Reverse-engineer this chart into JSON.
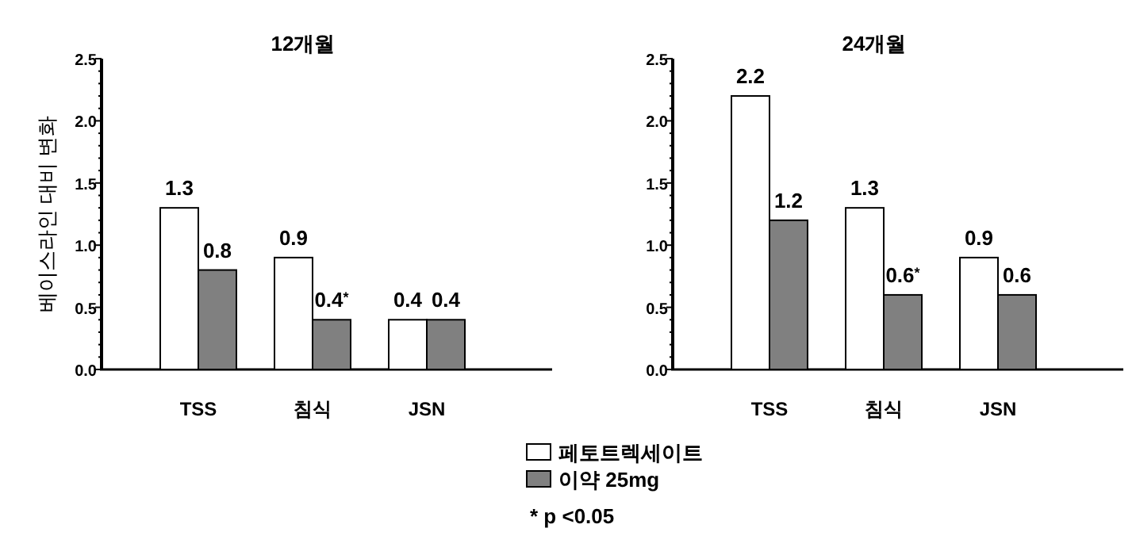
{
  "chart_data": [
    {
      "type": "bar",
      "title": "12개월",
      "ylabel": "베이스라인 대비 변화",
      "categories": [
        "TSS",
        "침식",
        "JSN"
      ],
      "series": [
        {
          "name": "페토트렉세이트",
          "color": "#ffffff",
          "values": [
            1.3,
            0.9,
            0.4
          ],
          "value_labels": [
            "1.3",
            "0.9",
            "0.4"
          ]
        },
        {
          "name": "이약 25mg",
          "color": "#808080",
          "values": [
            0.8,
            0.4,
            0.4
          ],
          "value_labels": [
            "0.8",
            "0.4$^{*}$",
            "0.4"
          ]
        }
      ],
      "ylim": [
        0,
        2.5
      ],
      "yticks": [
        {
          "value": 0,
          "label": "0.0"
        },
        {
          "value": 0.5,
          "label": "0.5"
        },
        {
          "value": 1,
          "label": "1.0"
        },
        {
          "value": 1.5,
          "label": "1.5"
        },
        {
          "value": 2,
          "label": "2.0"
        },
        {
          "value": 2.5,
          "label": "2.5"
        }
      ],
      "legend": "bottom",
      "annotations": [
        "* p <0.05"
      ]
    },
    {
      "type": "bar",
      "title": "24개월",
      "categories": [
        "TSS",
        "침식",
        "JSN"
      ],
      "series": [
        {
          "color": "#ffffff",
          "values": [
            2.2,
            1.3,
            0.9
          ],
          "value_labels": [
            "2.2",
            "1.3",
            "0.9"
          ]
        },
        {
          "color": "#808080",
          "values": [
            1.2,
            0.6,
            0.6
          ],
          "value_labels": [
            "1.2",
            "0.6$^{*}$",
            "0.6"
          ]
        }
      ],
      "ylim": [
        0,
        2.5
      ],
      "yticks": [
        {
          "value": 0,
          "label": "0.0"
        },
        {
          "value": 0.5,
          "label": "0.5"
        },
        {
          "value": 1,
          "label": "1.0"
        },
        {
          "value": 1.5,
          "label": "1.5"
        },
        {
          "value": 2,
          "label": "2.0"
        },
        {
          "value": 2.5,
          "label": "2.5"
        }
      ]
    }
  ]
}
